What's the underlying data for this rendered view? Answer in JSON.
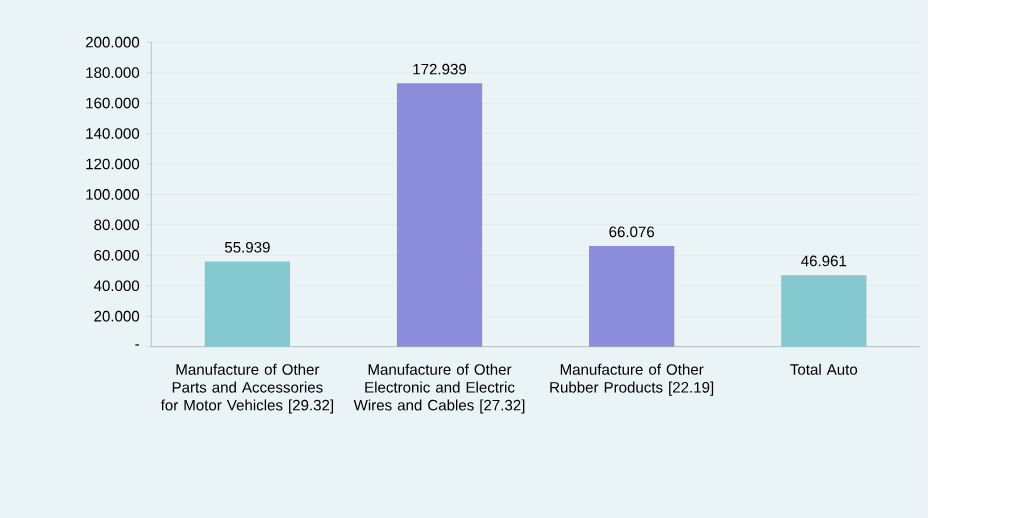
{
  "chart_data": {
    "type": "bar",
    "categories": [
      "Manufacture of Other Parts and Accessories for Motor Vehicles [29.32]",
      "Manufacture of Other Electronic and Electric Wires and Cables [27.32]",
      "Manufacture of Other Rubber Products [22.19]",
      "Total Auto"
    ],
    "values": [
      55.939,
      172.939,
      66.076,
      46.961
    ],
    "colors": [
      "#83c9cf",
      "#8b8cdc",
      "#8b8cdc",
      "#83c9cf"
    ],
    "ylim": [
      0,
      200
    ],
    "yticks": [
      {
        "value": 0,
        "label": "-"
      },
      {
        "value": 20,
        "label": "20.000"
      },
      {
        "value": 40,
        "label": "40.000"
      },
      {
        "value": 60,
        "label": "60.000"
      },
      {
        "value": 80,
        "label": "80.000"
      },
      {
        "value": 100,
        "label": "100.000"
      },
      {
        "value": 120,
        "label": "120.000"
      },
      {
        "value": 140,
        "label": "140.000"
      },
      {
        "value": 160,
        "label": "160.000"
      },
      {
        "value": 180,
        "label": "180.000"
      },
      {
        "value": 200,
        "label": "200.000"
      }
    ],
    "grid": "y",
    "data_labels": true
  }
}
